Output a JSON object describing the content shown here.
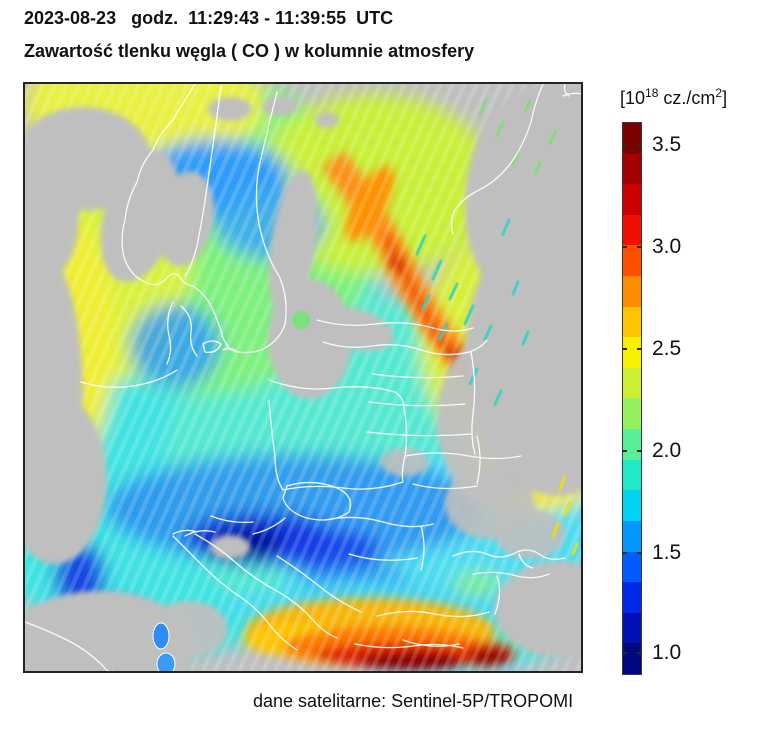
{
  "header": {
    "line1": "2023-08-23   godz.  11:29:43 - 11:39:55  UTC",
    "line2": "Zawartość tlenku węgla ( CO ) w kolumnie atmosfery"
  },
  "caption": "dane satelitarne: Sentinel-5P/TROPOMI",
  "colorbar": {
    "unit_prefix": "[10",
    "unit_exponent": "18",
    "unit_mid": " cz./cm",
    "unit_exponent2": "2",
    "unit_suffix": "]",
    "ticks": [
      {
        "label": "3.5",
        "pos": 4.2
      },
      {
        "label": "3.0",
        "pos": 22.6
      },
      {
        "label": "2.5",
        "pos": 41.0
      },
      {
        "label": "2.0",
        "pos": 59.5
      },
      {
        "label": "1.5",
        "pos": 77.9
      },
      {
        "label": "1.0",
        "pos": 96.0
      }
    ],
    "segments_top_to_bottom": [
      "#7c0000",
      "#a50000",
      "#cd0000",
      "#f01000",
      "#ff5000",
      "#ff8c00",
      "#ffc400",
      "#f8f000",
      "#ccf030",
      "#94f05c",
      "#58f096",
      "#20e8c8",
      "#00d4f4",
      "#0098ff",
      "#005cff",
      "#0028e8",
      "#0010b4",
      "#000880"
    ]
  },
  "palette": {
    "no_data_gray": "#bfbfbf",
    "map_border": "#232323",
    "country_border_white": "#ffffff"
  }
}
